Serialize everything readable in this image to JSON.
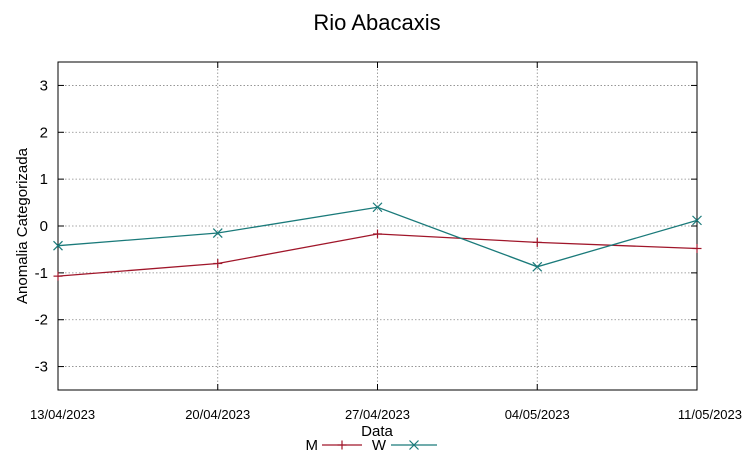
{
  "chart_data": {
    "type": "line",
    "title": "Rio Abacaxis",
    "xlabel": "Data",
    "ylabel": "Anomalia Categorizada",
    "categories": [
      "13/04/2023",
      "20/04/2023",
      "27/04/2023",
      "04/05/2023",
      "11/05/2023"
    ],
    "ylim": [
      -3.5,
      3.5
    ],
    "yticks": [
      -3,
      -2,
      -1,
      0,
      1,
      2,
      3
    ],
    "grid": true,
    "legend": "bottom-center",
    "series": [
      {
        "name": "M",
        "color": "#a0162a",
        "marker": "plus",
        "values": [
          -1.07,
          -0.8,
          -0.17,
          -0.35,
          -0.48
        ]
      },
      {
        "name": "W",
        "color": "#1a7a7a",
        "marker": "cross",
        "values": [
          -0.42,
          -0.15,
          0.4,
          -0.87,
          0.12
        ]
      }
    ]
  }
}
